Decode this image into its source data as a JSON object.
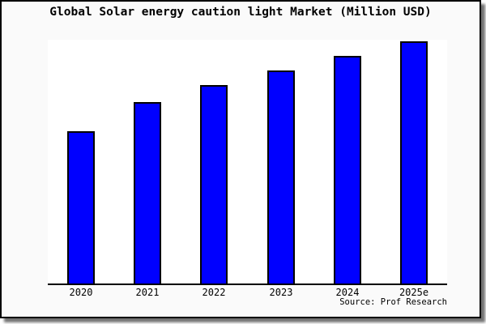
{
  "colors": {
    "bar_fill": "#0000FF",
    "bar_edge": "#000000",
    "plot_background": "#FFFFFF",
    "canvas_background": "#FAFAFA",
    "frame_border": "#000000",
    "text": "#000000"
  },
  "source_credit": "Source: Prof Research",
  "chart_data": {
    "type": "bar",
    "title": "Global Solar energy caution light Market (Million USD)",
    "categories": [
      "2020",
      "2021",
      "2022",
      "2023",
      "2024",
      "2025e"
    ],
    "values": [
      63,
      75,
      82,
      88,
      94,
      100
    ],
    "note": "No y-axis ticks or gridlines shown; values are relative estimates from bar heights with tallest bar (2025e) = 100",
    "xlabel": "",
    "ylabel": "",
    "ylim": [
      0,
      100.7
    ],
    "grid": false,
    "legend": null,
    "y_axis_labels_visible": false,
    "source": "Source: Prof Research",
    "bar_color": "#0000FF",
    "bar_edge_color": "#000000"
  }
}
